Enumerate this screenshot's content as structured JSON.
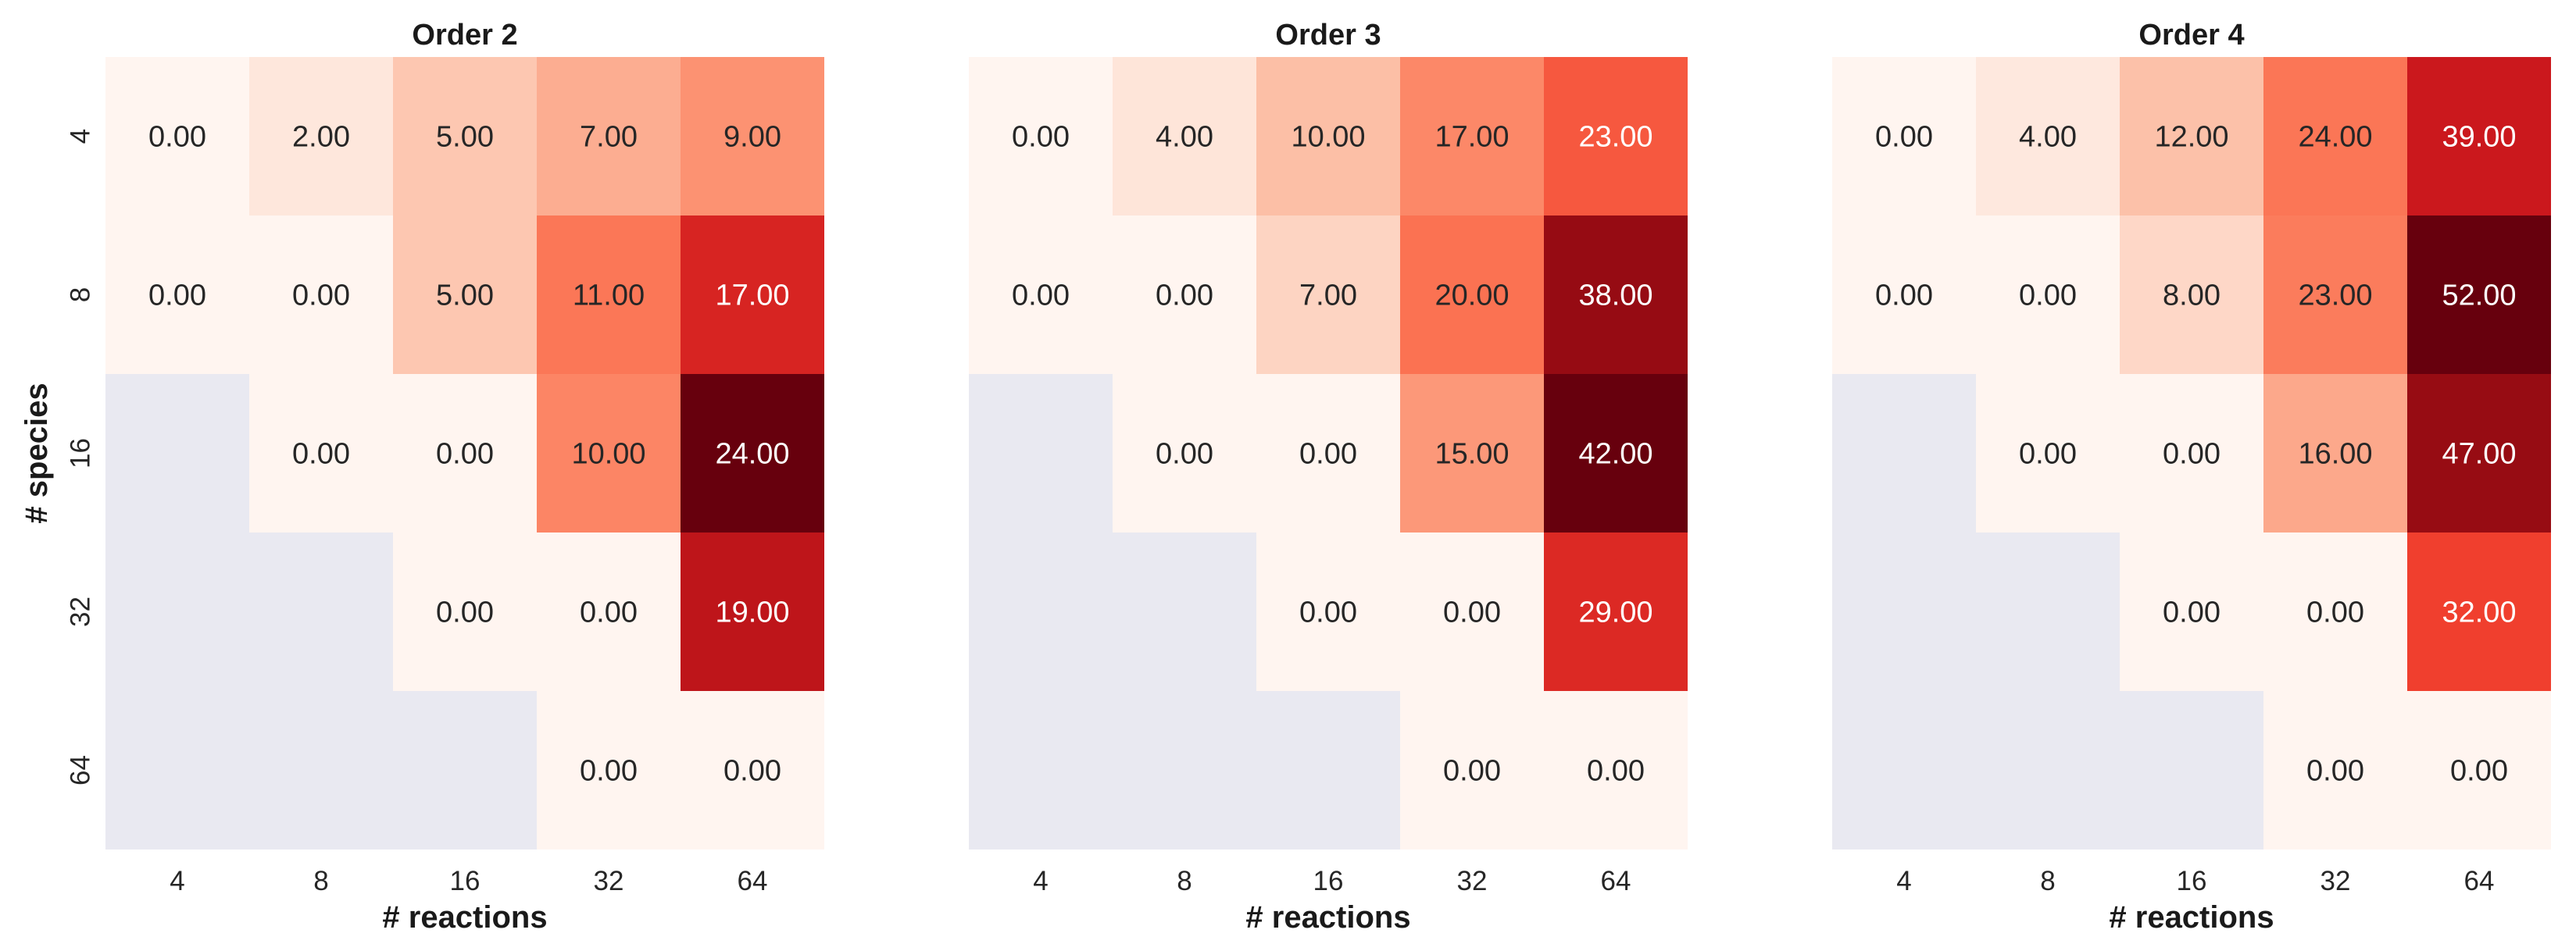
{
  "chart_data": [
    {
      "type": "heatmap",
      "title": "Order 2",
      "xlabel": "# reactions",
      "ylabel": "# species",
      "x_categories": [
        "4",
        "8",
        "16",
        "32",
        "64"
      ],
      "y_categories": [
        "4",
        "8",
        "16",
        "32",
        "64"
      ],
      "values": [
        [
          0,
          2,
          5,
          7,
          9
        ],
        [
          0,
          0,
          5,
          11,
          17
        ],
        [
          null,
          0,
          0,
          10,
          24
        ],
        [
          null,
          null,
          0,
          0,
          19
        ],
        [
          null,
          null,
          null,
          0,
          0
        ]
      ],
      "labels": [
        [
          "0.00",
          "2.00",
          "5.00",
          "7.00",
          "9.00"
        ],
        [
          "0.00",
          "0.00",
          "5.00",
          "11.00",
          "17.00"
        ],
        [
          null,
          "0.00",
          "0.00",
          "10.00",
          "24.00"
        ],
        [
          null,
          null,
          "0.00",
          "0.00",
          "19.00"
        ],
        [
          null,
          null,
          null,
          "0.00",
          "0.00"
        ]
      ],
      "colormap": "Reds",
      "missing_color": "#e9e9f1"
    },
    {
      "type": "heatmap",
      "title": "Order 3",
      "xlabel": "# reactions",
      "ylabel": "",
      "x_categories": [
        "4",
        "8",
        "16",
        "32",
        "64"
      ],
      "y_categories": [],
      "values": [
        [
          0,
          4,
          10,
          17,
          23
        ],
        [
          0,
          0,
          7,
          20,
          38
        ],
        [
          null,
          0,
          0,
          15,
          42
        ],
        [
          null,
          null,
          0,
          0,
          29
        ],
        [
          null,
          null,
          null,
          0,
          0
        ]
      ],
      "labels": [
        [
          "0.00",
          "4.00",
          "10.00",
          "17.00",
          "23.00"
        ],
        [
          "0.00",
          "0.00",
          "7.00",
          "20.00",
          "38.00"
        ],
        [
          null,
          "0.00",
          "0.00",
          "15.00",
          "42.00"
        ],
        [
          null,
          null,
          "0.00",
          "0.00",
          "29.00"
        ],
        [
          null,
          null,
          null,
          "0.00",
          "0.00"
        ]
      ],
      "colormap": "Reds",
      "missing_color": "#e9e9f1"
    },
    {
      "type": "heatmap",
      "title": "Order 4",
      "xlabel": "# reactions",
      "ylabel": "",
      "x_categories": [
        "4",
        "8",
        "16",
        "32",
        "64"
      ],
      "y_categories": [],
      "values": [
        [
          0,
          4,
          12,
          24,
          39
        ],
        [
          0,
          0,
          8,
          23,
          52
        ],
        [
          null,
          0,
          0,
          16,
          47
        ],
        [
          null,
          null,
          0,
          0,
          32
        ],
        [
          null,
          null,
          null,
          0,
          0
        ]
      ],
      "labels": [
        [
          "0.00",
          "4.00",
          "12.00",
          "24.00",
          "39.00"
        ],
        [
          "0.00",
          "0.00",
          "8.00",
          "23.00",
          "52.00"
        ],
        [
          null,
          "0.00",
          "0.00",
          "16.00",
          "47.00"
        ],
        [
          null,
          null,
          "0.00",
          "0.00",
          "32.00"
        ],
        [
          null,
          null,
          null,
          "0.00",
          "0.00"
        ]
      ],
      "colormap": "Reds",
      "missing_color": "#e9e9f1"
    }
  ]
}
